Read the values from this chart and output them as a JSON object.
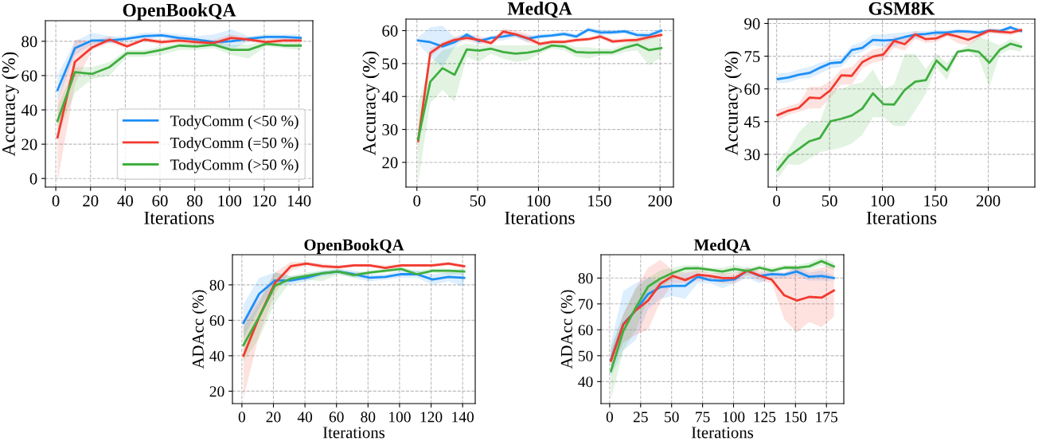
{
  "chart_data": [
    {
      "type": "line",
      "title": "OpenBookQA",
      "xlabel": "Iterations",
      "ylabel": "Accuracy (%)",
      "xlim": [
        -6,
        148
      ],
      "ylim": [
        -5,
        92
      ],
      "xticks": [
        0,
        20,
        40,
        60,
        80,
        100,
        120,
        140
      ],
      "yticks": [
        0,
        20,
        40,
        60,
        80
      ],
      "grid": true,
      "legend": "bottom right",
      "line_style": "solid",
      "marker": "none",
      "x": [
        1,
        11,
        21,
        31,
        41,
        51,
        61,
        71,
        81,
        91,
        101,
        111,
        121,
        131,
        141
      ],
      "series": [
        {
          "name": "TodyComm (<50 %)",
          "color": "#1e8ff5",
          "values": [
            51.5,
            76,
            80.5,
            80.5,
            81.5,
            83,
            83.5,
            82,
            81,
            79.5,
            80,
            81.5,
            82.5,
            82.5,
            82
          ],
          "lower": [
            45,
            72,
            78,
            79,
            79.5,
            81,
            82,
            80,
            79,
            77,
            75,
            80,
            81,
            81,
            80.5
          ],
          "upper": [
            60,
            80,
            85,
            83,
            83,
            85,
            85,
            84,
            83,
            84,
            87,
            83,
            84,
            84,
            84
          ]
        },
        {
          "name": "TodyComm (=50 %)",
          "color": "#f23a2f",
          "values": [
            24,
            68,
            76.5,
            81,
            77,
            81,
            79.5,
            80.5,
            79.5,
            79,
            82,
            81,
            79.5,
            80.5,
            80.5
          ],
          "lower": [
            -2,
            55,
            75,
            79,
            76,
            80,
            78,
            79,
            78,
            77,
            80,
            80,
            78,
            79,
            79
          ],
          "upper": [
            45,
            81,
            80,
            83,
            79,
            82,
            81,
            82,
            81,
            81,
            84,
            82,
            81,
            82,
            82
          ]
        },
        {
          "name": "TodyComm (>50 %)",
          "color": "#3fae3f",
          "values": [
            33.5,
            62,
            61,
            65,
            73,
            73,
            75,
            77.5,
            77,
            78,
            75,
            75,
            78.5,
            77.5,
            77.5
          ],
          "lower": [
            25,
            50,
            58,
            60,
            71,
            71,
            72,
            75,
            75,
            76,
            72,
            70,
            77,
            76,
            75
          ],
          "upper": [
            42,
            65,
            65,
            68,
            75,
            75,
            77,
            79,
            79,
            80,
            78,
            78,
            80,
            79,
            79
          ]
        }
      ]
    },
    {
      "type": "line",
      "title": "MedQA",
      "xlabel": "Iterations",
      "ylabel": "Accuracy (%)",
      "xlim": [
        -9,
        211
      ],
      "ylim": [
        12.5,
        63.5
      ],
      "xticks": [
        0,
        50,
        100,
        150,
        200
      ],
      "yticks": [
        20,
        30,
        40,
        50,
        60
      ],
      "grid": true,
      "legend": false,
      "line_style": "solid",
      "marker": "none",
      "x": [
        1,
        11,
        21,
        31,
        41,
        51,
        61,
        71,
        81,
        91,
        101,
        111,
        121,
        131,
        141,
        151,
        161,
        171,
        181,
        191,
        201
      ],
      "series": [
        {
          "color": "#1e8ff5",
          "values": [
            57,
            56.5,
            55.2,
            56.5,
            58.8,
            56.8,
            57.8,
            58.2,
            58.8,
            57.6,
            58.2,
            58.5,
            59,
            58.2,
            60.3,
            59.4,
            59.5,
            59.8,
            58.7,
            58.6,
            60
          ],
          "lower": [
            56,
            52,
            49,
            55,
            58,
            56,
            57,
            57,
            58,
            56.5,
            57.5,
            58,
            58.3,
            57.5,
            59.5,
            58.5,
            58.8,
            59,
            58,
            57.8,
            59.3
          ],
          "upper": [
            58,
            61,
            61.5,
            58,
            59.5,
            57.5,
            58.5,
            59,
            59.5,
            58.5,
            59,
            59.2,
            59.8,
            59,
            61,
            60.3,
            60.2,
            60.5,
            59.5,
            59.5,
            60.8
          ]
        },
        {
          "color": "#f23a2f",
          "values": [
            26.5,
            53.2,
            55.8,
            57.2,
            57.8,
            57.2,
            56.2,
            59.7,
            58.9,
            57.7,
            56,
            56.6,
            56.6,
            57.1,
            57.4,
            58.2,
            56.7,
            57,
            57.2,
            58,
            58.7
          ],
          "lower": [
            23,
            52,
            55,
            56.5,
            57,
            56,
            55.5,
            58.7,
            58,
            56.5,
            55.3,
            56,
            56,
            56.5,
            56.8,
            57.5,
            56,
            56.3,
            56.5,
            57.2,
            58
          ],
          "upper": [
            30,
            54.5,
            56.5,
            58,
            58.7,
            58.5,
            57,
            60.7,
            60,
            59,
            56.7,
            57.2,
            57.2,
            57.7,
            58,
            58.9,
            57.4,
            57.7,
            58,
            58.8,
            59.4
          ]
        },
        {
          "color": "#3fae3f",
          "values": [
            27,
            44.5,
            48.6,
            46.6,
            54.3,
            53.9,
            54.5,
            53.5,
            53,
            53.3,
            54,
            55.5,
            55.2,
            53.5,
            53.3,
            53.4,
            53.4,
            54.8,
            55.8,
            54.1,
            54.7
          ],
          "lower": [
            14,
            38,
            42,
            38.5,
            52,
            50.5,
            53,
            51.5,
            50.5,
            51,
            53,
            54.5,
            54,
            52,
            51.5,
            52.5,
            52.5,
            53.5,
            54,
            49.5,
            52
          ],
          "upper": [
            38,
            50,
            54,
            55,
            56,
            55.5,
            55.5,
            55.5,
            55.5,
            55.5,
            55.5,
            56.5,
            56.3,
            55,
            55,
            54.5,
            54.5,
            56,
            57.5,
            58.5,
            57.5
          ]
        }
      ]
    },
    {
      "type": "line",
      "title": "GSM8K",
      "xlabel": "Iterations",
      "ylabel": "Accuracy (%)",
      "xlim": [
        -8,
        244
      ],
      "ylim": [
        15,
        92
      ],
      "xticks": [
        0,
        50,
        100,
        150,
        200
      ],
      "yticks": [
        30,
        45,
        60,
        75,
        90
      ],
      "grid": true,
      "legend": false,
      "line_style": "solid",
      "marker": "none",
      "x": [
        1,
        11,
        21,
        31,
        41,
        51,
        61,
        71,
        81,
        91,
        101,
        111,
        121,
        131,
        141,
        151,
        161,
        171,
        181,
        191,
        201,
        211,
        221,
        231
      ],
      "series": [
        {
          "color": "#1e8ff5",
          "values": [
            64.5,
            65.2,
            66.5,
            67.3,
            69.7,
            71.8,
            72.2,
            77.8,
            78.8,
            82.5,
            82.2,
            82.5,
            83.8,
            84.8,
            85.2,
            85.8,
            85.8,
            86.5,
            86.3,
            85.8,
            86.8,
            86.5,
            88.2,
            86.5
          ],
          "lower": [
            62.5,
            63,
            64.5,
            65,
            67,
            69.5,
            70,
            75,
            77,
            80,
            79,
            79.5,
            81.5,
            83,
            84,
            84.5,
            84.5,
            85.5,
            85.3,
            84.8,
            85.8,
            85.5,
            87,
            85.5
          ],
          "upper": [
            67,
            67.5,
            69,
            70,
            72,
            73.5,
            74,
            80,
            81.5,
            85,
            85,
            85.5,
            86,
            86.5,
            86.5,
            87,
            87,
            87.5,
            87.3,
            87,
            87.5,
            87.5,
            89,
            87.5
          ]
        },
        {
          "color": "#f23a2f",
          "values": [
            48,
            50,
            51.3,
            56,
            55.7,
            59.5,
            66.2,
            66,
            72.3,
            74.8,
            75.8,
            82,
            80.5,
            85,
            82.8,
            83.2,
            85.2,
            84,
            82.5,
            84.5,
            86.7,
            86.2,
            85.8,
            87
          ],
          "lower": [
            45.5,
            48,
            49.5,
            51,
            51,
            56,
            62,
            62,
            69.5,
            72,
            73,
            79,
            77.5,
            83,
            81,
            81.5,
            84,
            81,
            80,
            83,
            85.5,
            85,
            84.5,
            86
          ],
          "upper": [
            50.5,
            52,
            53.5,
            61,
            61,
            63.5,
            69,
            70,
            75,
            78,
            79,
            84,
            83.5,
            86.5,
            84.5,
            85,
            86.5,
            86.5,
            86,
            86,
            87.8,
            87.5,
            87,
            88
          ]
        },
        {
          "color": "#3fae3f",
          "values": [
            23,
            29,
            32.5,
            36,
            37.5,
            45.2,
            46.3,
            47.8,
            51,
            58,
            53,
            52.8,
            59.5,
            63.3,
            64,
            73,
            68.5,
            77,
            77.8,
            77,
            72,
            78,
            80.7,
            79.3
          ],
          "lower": [
            19,
            25.5,
            25,
            28,
            31,
            32,
            33,
            35,
            39,
            47,
            47,
            43,
            43,
            50,
            58,
            70,
            64,
            76.5,
            77,
            74,
            61,
            76,
            78,
            77
          ],
          "upper": [
            27,
            32,
            40,
            45,
            45,
            59,
            60,
            62,
            63,
            69,
            60,
            62,
            76,
            76,
            69,
            76,
            72,
            77.5,
            80,
            84,
            82,
            80,
            83,
            81
          ]
        }
      ]
    },
    {
      "type": "line",
      "title": "OpenBookQA",
      "xlabel": "Iterations",
      "ylabel": "ADAcc (%)",
      "xlim": [
        -6,
        148
      ],
      "ylim": [
        13,
        97
      ],
      "xticks": [
        0,
        20,
        40,
        60,
        80,
        100,
        120,
        140
      ],
      "yticks": [
        20,
        40,
        60,
        80
      ],
      "grid": true,
      "legend": false,
      "line_style": "solid",
      "marker": "none",
      "x": [
        1,
        11,
        21,
        31,
        41,
        51,
        61,
        71,
        81,
        91,
        101,
        111,
        121,
        131,
        141
      ],
      "series": [
        {
          "color": "#1e8ff5",
          "values": [
            58.5,
            75,
            82.5,
            82.5,
            84,
            86.5,
            87.5,
            86,
            84,
            84.5,
            86,
            86,
            83,
            84.5,
            84
          ],
          "lower": [
            50,
            67,
            80,
            80,
            82,
            85,
            86,
            84,
            82,
            83,
            84,
            84,
            80,
            82,
            79
          ],
          "upper": [
            69,
            84,
            87,
            85,
            86,
            88,
            89,
            88,
            86,
            86,
            88,
            88,
            86,
            87,
            87
          ]
        },
        {
          "color": "#f23a2f",
          "values": [
            40,
            62,
            81,
            90.5,
            92,
            90.5,
            90,
            91,
            91,
            89.5,
            91,
            91,
            91,
            92,
            90.5
          ],
          "lower": [
            16,
            52,
            75,
            88,
            91,
            89,
            89,
            90,
            90,
            89,
            90,
            90,
            90,
            91,
            89
          ],
          "upper": [
            60,
            72,
            87,
            93,
            93,
            92,
            91,
            92,
            92,
            91,
            92,
            92,
            92,
            93,
            91
          ]
        },
        {
          "color": "#3fae3f",
          "values": [
            46,
            62,
            79.5,
            83.5,
            85,
            86.5,
            87.5,
            85.5,
            87,
            88,
            89,
            86,
            88,
            88,
            87.5
          ],
          "lower": [
            37,
            50,
            70,
            82,
            83,
            82,
            86,
            84,
            86,
            87,
            88,
            85,
            87,
            86,
            86
          ],
          "upper": [
            56,
            70,
            87,
            85,
            87,
            88,
            89,
            87,
            88,
            89,
            90,
            88,
            89,
            89,
            89
          ]
        }
      ]
    },
    {
      "type": "line",
      "title": "MedQA",
      "xlabel": "Iterations",
      "ylabel": "ADAcc (%)",
      "xlim": [
        -7,
        189
      ],
      "ylim": [
        31.5,
        89
      ],
      "xticks": [
        0,
        25,
        50,
        75,
        100,
        125,
        150,
        175
      ],
      "yticks": [
        40,
        50,
        60,
        70,
        80
      ],
      "grid": true,
      "legend": false,
      "line_style": "solid",
      "marker": "none",
      "x": [
        1,
        11,
        21,
        31,
        41,
        51,
        61,
        71,
        81,
        91,
        101,
        111,
        121,
        131,
        141,
        151,
        161,
        171,
        181
      ],
      "series": [
        {
          "color": "#1e8ff5",
          "values": [
            48.5,
            62.3,
            67.5,
            73.8,
            76.5,
            77,
            77,
            80.5,
            79.2,
            79,
            79.5,
            82.8,
            80.8,
            81.5,
            81.3,
            82.5,
            80.5,
            80.8,
            80
          ],
          "lower": [
            42,
            52,
            56,
            68,
            72,
            73,
            72,
            78,
            78,
            76,
            78,
            80,
            78,
            80,
            80,
            81,
            79,
            79,
            79
          ],
          "upper": [
            55,
            75,
            78,
            80,
            79,
            80,
            82,
            82,
            81,
            81,
            81,
            84,
            82,
            83,
            82,
            84,
            82,
            83,
            81
          ]
        },
        {
          "color": "#f23a2f",
          "values": [
            48,
            62,
            67.5,
            71.3,
            77.8,
            80.8,
            79.2,
            81.3,
            80.8,
            80,
            80,
            82.8,
            81,
            79.3,
            73.3,
            71.3,
            72.7,
            72.4,
            75.2
          ],
          "lower": [
            44,
            55,
            58,
            60,
            71,
            78,
            78,
            79,
            79,
            78,
            78,
            81,
            79,
            78,
            64,
            59,
            63,
            61,
            65
          ],
          "upper": [
            52,
            66,
            76,
            84,
            87,
            83,
            82,
            83,
            82,
            82,
            82,
            84,
            83,
            82,
            82,
            84,
            83,
            84,
            85
          ]
        },
        {
          "color": "#3fae3f",
          "values": [
            44,
            59.5,
            68.5,
            76.7,
            79.8,
            82,
            83.7,
            83.8,
            83.2,
            82.5,
            83.5,
            82.7,
            84,
            82.8,
            84,
            84,
            84.5,
            86.5,
            84.5
          ],
          "lower": [
            33,
            52,
            60,
            72,
            76,
            80,
            82,
            82,
            82,
            81,
            82,
            81,
            83,
            82,
            83,
            83,
            83,
            85,
            83
          ],
          "upper": [
            53,
            66,
            76,
            80,
            83,
            84,
            85,
            85,
            84,
            84,
            85,
            84,
            85,
            84,
            85,
            85,
            86,
            88,
            86
          ]
        }
      ]
    }
  ]
}
